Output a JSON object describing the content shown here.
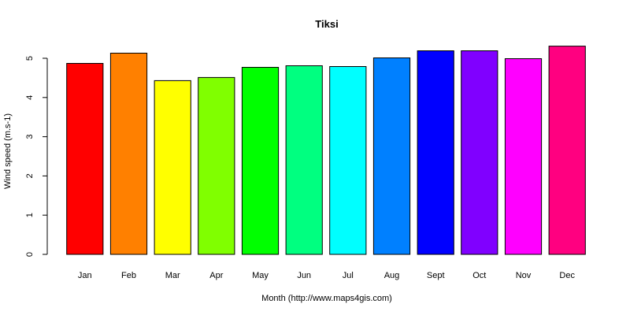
{
  "chart_data": {
    "type": "bar",
    "title": "Tiksi",
    "xlabel": "Month (http://www.maps4gis.com)",
    "ylabel": "Wind speed (m.s-1)",
    "categories": [
      "Jan",
      "Feb",
      "Mar",
      "Apr",
      "May",
      "Jun",
      "Jul",
      "Aug",
      "Sept",
      "Oct",
      "Nov",
      "Dec"
    ],
    "values": [
      4.87,
      5.13,
      4.43,
      4.51,
      4.77,
      4.81,
      4.79,
      5.01,
      5.19,
      5.19,
      4.99,
      5.31
    ],
    "colors": [
      "#FF0000",
      "#FF8000",
      "#FFFF00",
      "#80FF00",
      "#00FF00",
      "#00FF80",
      "#00FFFF",
      "#0080FF",
      "#0000FF",
      "#8000FF",
      "#FF00FF",
      "#FF0080"
    ],
    "yticks": [
      0,
      1,
      2,
      3,
      4,
      5
    ],
    "ylim": [
      0,
      5.5
    ],
    "grid": false,
    "legend": "none"
  }
}
